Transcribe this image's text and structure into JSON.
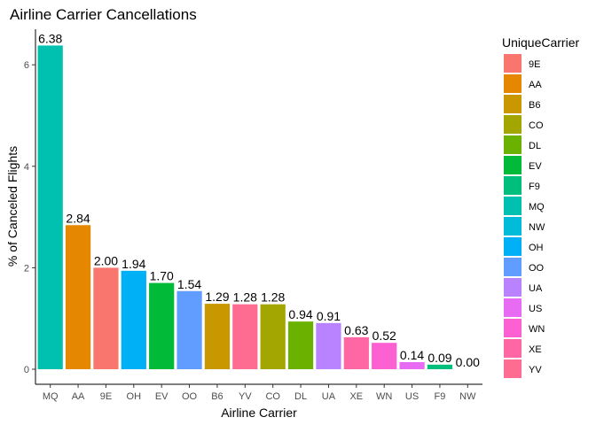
{
  "chart_data": {
    "type": "bar",
    "title": "Airline Carrier Cancellations",
    "xlabel": "Airline Carrier",
    "ylabel": "% of Canceled Flights",
    "categories": [
      "MQ",
      "AA",
      "9E",
      "OH",
      "EV",
      "OO",
      "B6",
      "YV",
      "CO",
      "DL",
      "UA",
      "XE",
      "WN",
      "US",
      "F9",
      "NW"
    ],
    "values": [
      6.38,
      2.84,
      2.0,
      1.94,
      1.7,
      1.54,
      1.29,
      1.28,
      1.28,
      0.94,
      0.91,
      0.63,
      0.52,
      0.14,
      0.09,
      0.0
    ],
    "value_labels": [
      "6.38",
      "2.84",
      "2.00",
      "1.94",
      "1.70",
      "1.54",
      "1.29",
      "1.28",
      "1.28",
      "0.94",
      "0.91",
      "0.63",
      "0.52",
      "0.14",
      "0.09",
      "0.00"
    ],
    "ylim": [
      0,
      6.6
    ],
    "yticks": [
      0,
      2,
      4,
      6
    ],
    "ytick_labels": [
      "0",
      "2",
      "4",
      "6"
    ],
    "grid": false,
    "legend": {
      "title": "UniqueCarrier",
      "position": "right",
      "items": [
        "9E",
        "AA",
        "B6",
        "CO",
        "DL",
        "EV",
        "F9",
        "MQ",
        "NW",
        "OH",
        "OO",
        "UA",
        "US",
        "WN",
        "XE",
        "YV"
      ]
    },
    "colors": {
      "9E": "#F8766D",
      "AA": "#E58700",
      "B6": "#C99800",
      "CO": "#A3A500",
      "DL": "#6BB100",
      "EV": "#00BA38",
      "F9": "#00BF7D",
      "MQ": "#00C0AF",
      "NW": "#00BCD8",
      "OH": "#00B0F6",
      "OO": "#619CFF",
      "UA": "#B983FF",
      "US": "#E76BF3",
      "WN": "#FD61D1",
      "XE": "#FF67A4",
      "YV": "#FF6C91"
    }
  }
}
